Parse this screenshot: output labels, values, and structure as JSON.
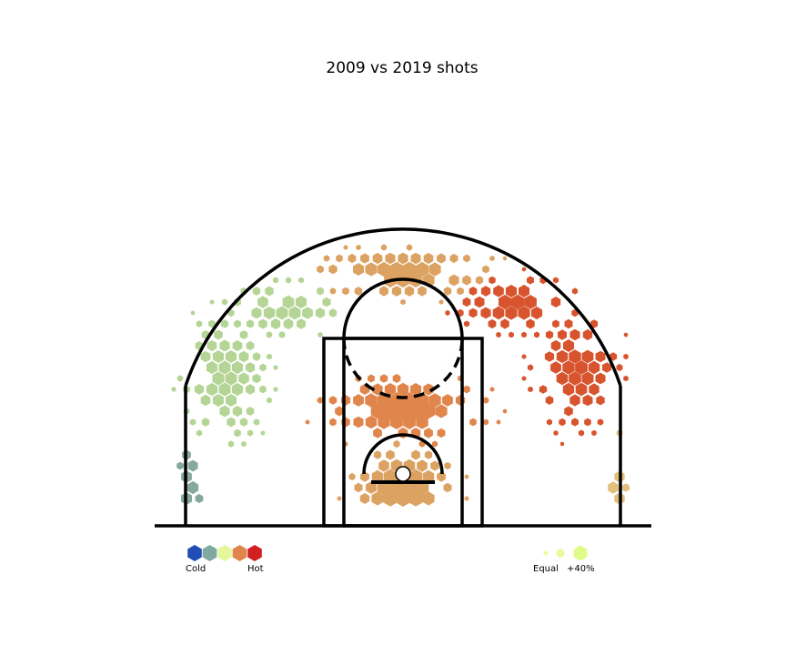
{
  "chart_data": {
    "type": "heatmap",
    "title": "2009 vs 2019 shots",
    "xlabel": "",
    "ylabel": "",
    "grid": false,
    "legend": {
      "placement": "bottom",
      "color_scale": [
        {
          "name": "cold",
          "color": "#1f4fb5"
        },
        {
          "name": "cool",
          "color": "#7fa8a0"
        },
        {
          "name": "neutral",
          "color": "#e4f79a"
        },
        {
          "name": "warm",
          "color": "#e0854c"
        },
        {
          "name": "hot",
          "color": "#d21f1f"
        }
      ],
      "cold_label": "Cold",
      "hot_label": "Hot",
      "size_labels": [
        "Equal",
        "+40%"
      ],
      "size_colors": [
        "#f1fbb0",
        "#e8fa9c",
        "#dffc8a"
      ]
    },
    "zones": [
      {
        "name": "left corner three",
        "color": "#86a99c",
        "cx": -245,
        "cy": 40,
        "rx": 12,
        "ry": 60,
        "density": 0.55
      },
      {
        "name": "left wing three",
        "color": "#b5d596",
        "cx": -205,
        "cy": 170,
        "rx": 40,
        "ry": 60,
        "density": 0.6
      },
      {
        "name": "left top arc",
        "color": "#b5d596",
        "cx": -135,
        "cy": 250,
        "rx": 55,
        "ry": 25,
        "density": 0.6
      },
      {
        "name": "top of key three",
        "color": "#dba262",
        "cx": 0,
        "cy": 290,
        "rx": 80,
        "ry": 22,
        "density": 0.75
      },
      {
        "name": "right top arc",
        "color": "#d8542e",
        "cx": 130,
        "cy": 255,
        "rx": 55,
        "ry": 25,
        "density": 0.7
      },
      {
        "name": "right wing three",
        "color": "#d8542e",
        "cx": 200,
        "cy": 180,
        "rx": 40,
        "ry": 55,
        "density": 0.65
      },
      {
        "name": "right corner three",
        "color": "#e2c07c",
        "cx": 245,
        "cy": 40,
        "rx": 12,
        "ry": 60,
        "density": 0.5
      },
      {
        "name": "free throw line",
        "color": "#e0854c",
        "cx": 0,
        "cy": 135,
        "rx": 70,
        "ry": 30,
        "density": 0.85
      },
      {
        "name": "restricted area",
        "color": "#dba262",
        "cx": 0,
        "cy": 40,
        "rx": 45,
        "ry": 40,
        "density": 0.9
      }
    ]
  }
}
